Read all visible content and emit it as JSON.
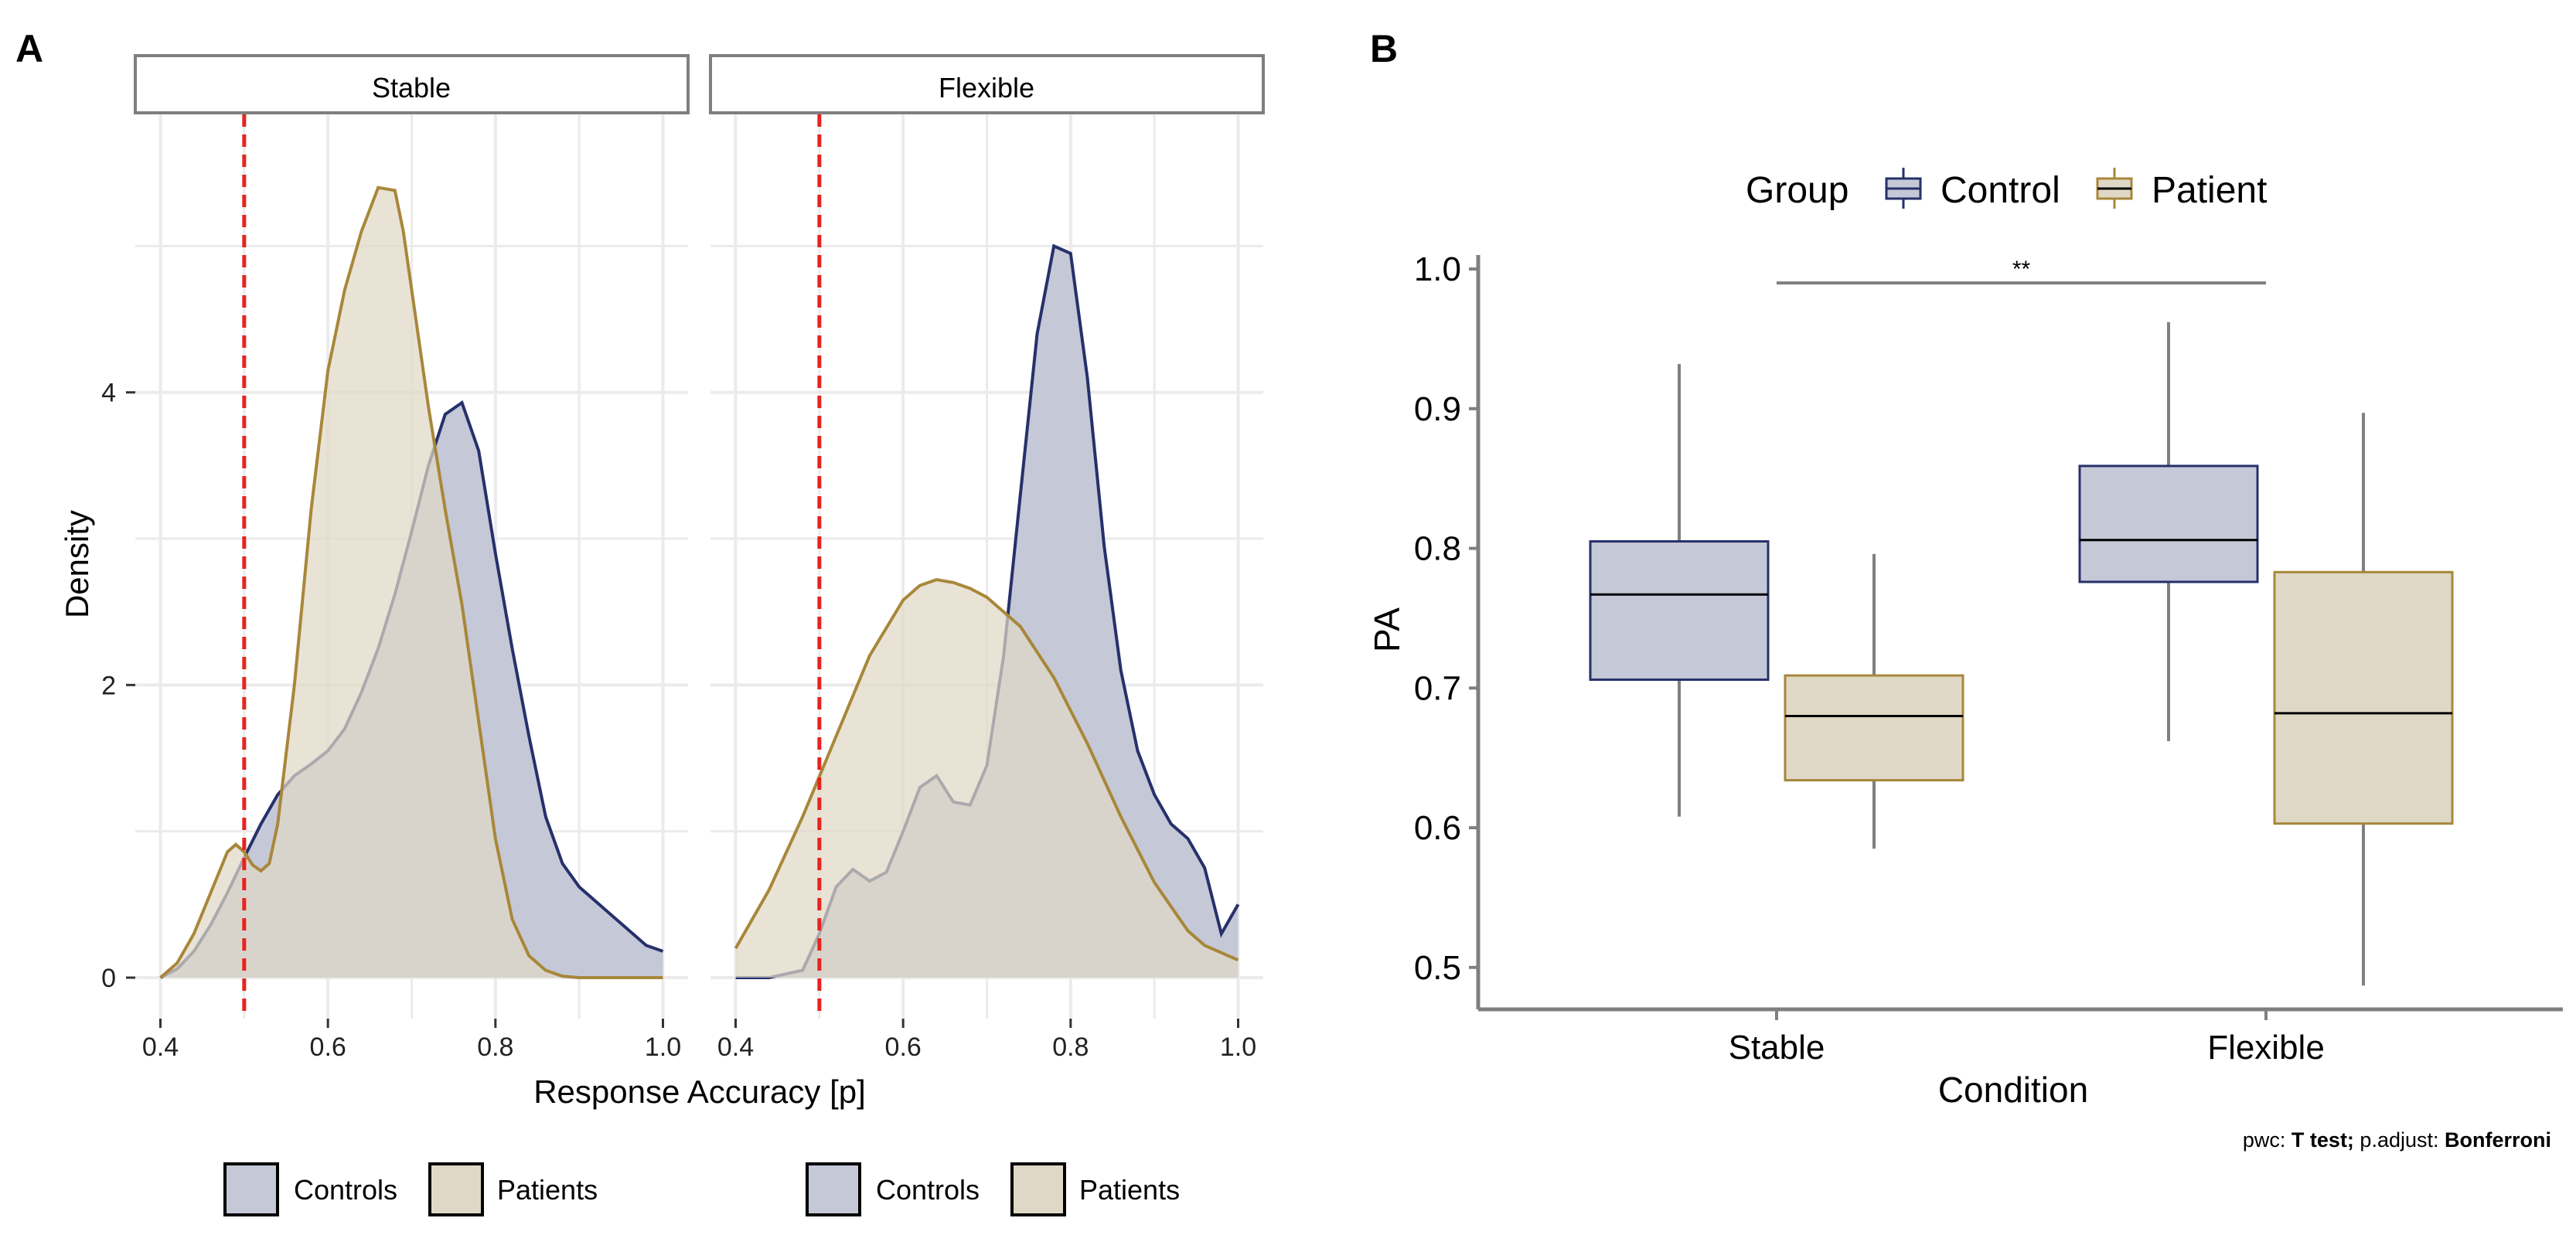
{
  "panel_labels": {
    "a": "A",
    "b": "B"
  },
  "colors": {
    "control_fill": "#c5c8d6",
    "control_line": "#26306b",
    "patient_fill": "#e0d8c6",
    "patient_line": "#a8873a",
    "overlap_fill": "#b8b1a8",
    "grid": "#ebebeb",
    "reference_line": "#e8231f",
    "whisker": "#7f7f7f"
  },
  "chart_data": [
    {
      "id": "A",
      "type": "area",
      "subtype": "density",
      "title": "",
      "xlabel": "Response Accuracy [p]",
      "ylabel": "Density",
      "xlim": [
        0.37,
        1.03
      ],
      "ylim": [
        -0.28,
        5.9
      ],
      "xticks": [
        0.4,
        0.6,
        0.8,
        1.0
      ],
      "xtick_labels": [
        "0.4",
        "0.6",
        "0.8",
        "1.0"
      ],
      "yticks": [
        0,
        2,
        4
      ],
      "ytick_labels": [
        "0",
        "2",
        "4"
      ],
      "reference_line_x": 0.5,
      "grid": true,
      "facets": [
        {
          "name": "Stable",
          "series": [
            {
              "name": "Controls",
              "x": [
                0.4,
                0.42,
                0.44,
                0.46,
                0.48,
                0.5,
                0.52,
                0.54,
                0.56,
                0.58,
                0.6,
                0.62,
                0.64,
                0.66,
                0.68,
                0.7,
                0.72,
                0.74,
                0.76,
                0.78,
                0.8,
                0.82,
                0.84,
                0.86,
                0.88,
                0.9,
                0.92,
                0.94,
                0.96,
                0.98,
                1.0
              ],
              "y": [
                0.0,
                0.06,
                0.18,
                0.36,
                0.58,
                0.82,
                1.05,
                1.25,
                1.38,
                1.46,
                1.55,
                1.7,
                1.95,
                2.25,
                2.62,
                3.05,
                3.5,
                3.85,
                3.93,
                3.6,
                2.9,
                2.25,
                1.65,
                1.1,
                0.78,
                0.62,
                0.52,
                0.42,
                0.32,
                0.22,
                0.18
              ]
            },
            {
              "name": "Patients",
              "x": [
                0.4,
                0.42,
                0.44,
                0.46,
                0.48,
                0.49,
                0.5,
                0.51,
                0.52,
                0.53,
                0.54,
                0.56,
                0.58,
                0.6,
                0.62,
                0.64,
                0.66,
                0.68,
                0.69,
                0.7,
                0.72,
                0.74,
                0.76,
                0.78,
                0.8,
                0.82,
                0.84,
                0.86,
                0.88,
                0.9,
                1.0
              ],
              "y": [
                0.0,
                0.1,
                0.3,
                0.58,
                0.86,
                0.91,
                0.86,
                0.77,
                0.73,
                0.78,
                1.05,
                2.0,
                3.2,
                4.15,
                4.7,
                5.1,
                5.4,
                5.38,
                5.1,
                4.7,
                3.9,
                3.2,
                2.55,
                1.75,
                0.95,
                0.4,
                0.15,
                0.05,
                0.01,
                0.0,
                0.0
              ]
            }
          ]
        },
        {
          "name": "Flexible",
          "series": [
            {
              "name": "Controls",
              "x": [
                0.4,
                0.44,
                0.48,
                0.5,
                0.52,
                0.54,
                0.56,
                0.58,
                0.6,
                0.62,
                0.64,
                0.66,
                0.68,
                0.7,
                0.72,
                0.74,
                0.76,
                0.78,
                0.8,
                0.82,
                0.84,
                0.86,
                0.88,
                0.9,
                0.92,
                0.94,
                0.96,
                0.98,
                1.0
              ],
              "y": [
                0.0,
                0.0,
                0.05,
                0.3,
                0.62,
                0.74,
                0.66,
                0.72,
                1.0,
                1.3,
                1.38,
                1.2,
                1.18,
                1.45,
                2.2,
                3.3,
                4.4,
                5.0,
                4.95,
                4.1,
                2.95,
                2.1,
                1.55,
                1.25,
                1.05,
                0.95,
                0.75,
                0.3,
                0.5
              ]
            },
            {
              "name": "Patients",
              "x": [
                0.4,
                0.44,
                0.48,
                0.52,
                0.56,
                0.6,
                0.62,
                0.64,
                0.66,
                0.68,
                0.7,
                0.74,
                0.78,
                0.82,
                0.86,
                0.9,
                0.94,
                0.96,
                1.0
              ],
              "y": [
                0.2,
                0.6,
                1.1,
                1.65,
                2.2,
                2.58,
                2.68,
                2.72,
                2.7,
                2.66,
                2.6,
                2.4,
                2.05,
                1.6,
                1.1,
                0.65,
                0.32,
                0.22,
                0.12
              ]
            }
          ]
        }
      ],
      "legend": [
        {
          "facet": "Stable",
          "entries": [
            "Controls",
            "Patients"
          ]
        },
        {
          "facet": "Flexible",
          "entries": [
            "Controls",
            "Patients"
          ]
        }
      ],
      "legend_position": "bottom"
    },
    {
      "id": "B",
      "type": "box",
      "title": "",
      "xlabel": "Condition",
      "ylabel": "PA",
      "ylim": [
        0.47,
        1.01
      ],
      "yticks": [
        0.5,
        0.6,
        0.7,
        0.8,
        0.9,
        1.0
      ],
      "ytick_labels": [
        "0.5",
        "0.6",
        "0.7",
        "0.8",
        "0.9",
        "1.0"
      ],
      "categories": [
        "Stable",
        "Flexible"
      ],
      "legend_title": "Group",
      "legend_position": "top",
      "series": [
        {
          "name": "Control",
          "boxes": [
            {
              "category": "Stable",
              "whisker_low": 0.608,
              "q1": 0.706,
              "median": 0.767,
              "q3": 0.805,
              "whisker_high": 0.932
            },
            {
              "category": "Flexible",
              "whisker_low": 0.662,
              "q1": 0.776,
              "median": 0.806,
              "q3": 0.859,
              "whisker_high": 0.962
            }
          ]
        },
        {
          "name": "Patient",
          "boxes": [
            {
              "category": "Stable",
              "whisker_low": 0.585,
              "q1": 0.634,
              "median": 0.68,
              "q3": 0.709,
              "whisker_high": 0.796
            },
            {
              "category": "Flexible",
              "whisker_low": 0.487,
              "q1": 0.603,
              "median": 0.682,
              "q3": 0.783,
              "whisker_high": 0.897
            }
          ]
        }
      ],
      "significance": {
        "from": "Stable",
        "to": "Flexible",
        "y": 0.99,
        "label": "**"
      },
      "note": {
        "prefix": "pwc: ",
        "test": "T test;",
        "middle": " p.adjust: ",
        "method": "Bonferroni"
      }
    }
  ]
}
